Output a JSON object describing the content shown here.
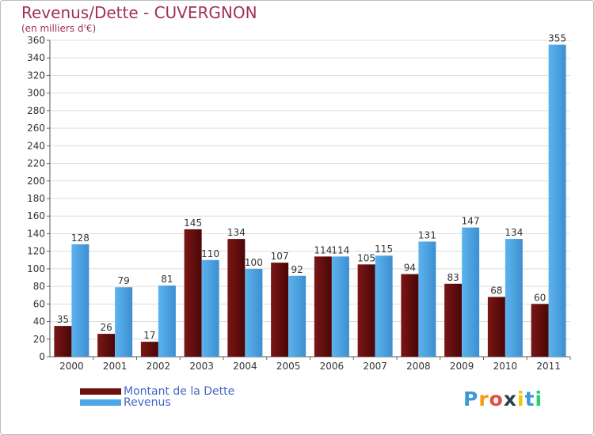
{
  "chart_data": {
    "type": "bar",
    "title": "Revenus/Dette - CUVERGNON",
    "subtitle": "(en milliers d'€)",
    "categories": [
      "2000",
      "2001",
      "2002",
      "2003",
      "2004",
      "2005",
      "2006",
      "2007",
      "2008",
      "2009",
      "2010",
      "2011"
    ],
    "series": [
      {
        "name": "Montant de la Dette",
        "color": "#6b0f0f",
        "values": [
          35,
          26,
          17,
          145,
          134,
          107,
          114,
          105,
          94,
          83,
          68,
          60
        ]
      },
      {
        "name": "Revenus",
        "color": "#4ea7e6",
        "values": [
          128,
          79,
          81,
          110,
          100,
          92,
          114,
          115,
          131,
          147,
          134,
          355
        ]
      }
    ],
    "ylim": [
      0,
      360
    ],
    "yticks": [
      0,
      20,
      40,
      60,
      80,
      100,
      120,
      140,
      160,
      180,
      200,
      220,
      240,
      260,
      280,
      300,
      320,
      340,
      360
    ],
    "grid": true,
    "legend": "bottom-left"
  },
  "legend": {
    "debt_label": "Montant de la Dette",
    "revenue_label": "Revenus"
  },
  "brand": {
    "letters": [
      "P",
      "r",
      "o",
      "x",
      "i",
      "t",
      "i"
    ],
    "colors": [
      "#3a9ad9",
      "#f39c12",
      "#e74c3c",
      "#2c3e50",
      "#f1c40f",
      "#3a9ad9",
      "#2ecc71"
    ]
  }
}
